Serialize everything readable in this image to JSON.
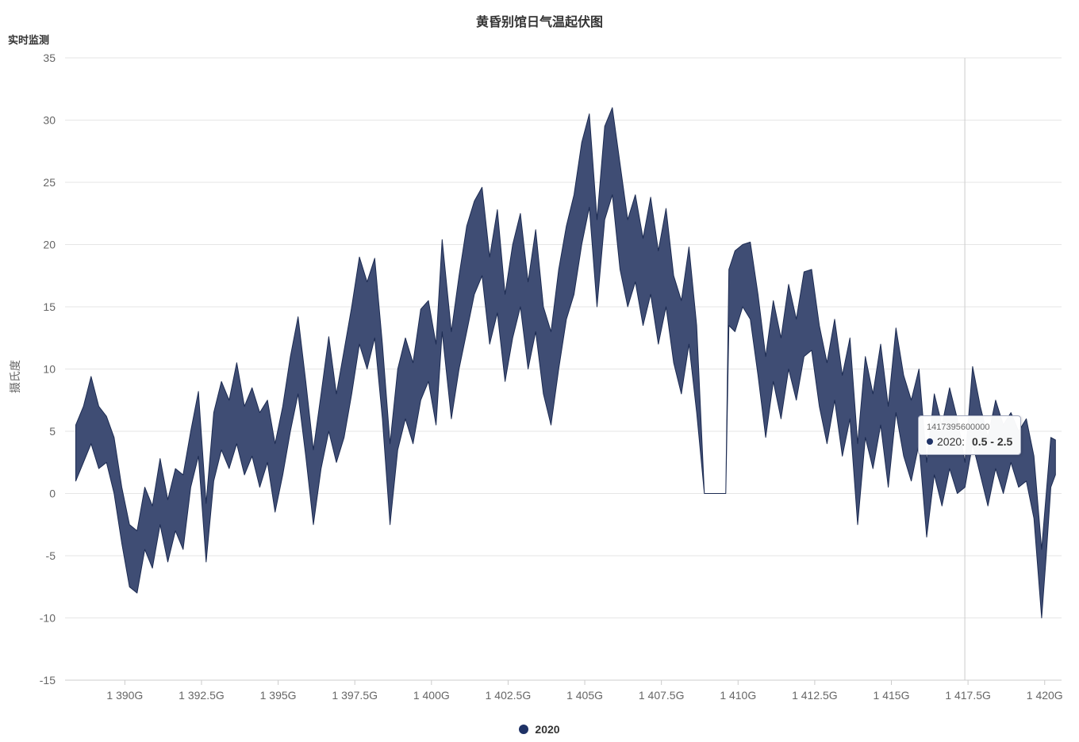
{
  "title": "黄昏别馆日气温起伏图",
  "y_axis_top_label": "实时监测",
  "y_axis_title": "摄氏度",
  "legend": {
    "label": "2020",
    "color": "#1f3266"
  },
  "tooltip": {
    "timestamp": "1417395600000",
    "series": "2020",
    "value": "0.5 - 2.5",
    "x_g": 1417.3956,
    "dot_color": "#1f3266"
  },
  "chart_data": {
    "type": "arearange",
    "title": "黄昏别馆日气温起伏图",
    "ylabel": "摄氏度",
    "series_name": "2020",
    "fill_color": "#3f4d74",
    "line_color": "#1c2b52",
    "grid_color": "#e6e6e6",
    "axis_color": "#cccccc",
    "tick_label_color": "#666666",
    "x_range": [
      1388.05,
      1420.55
    ],
    "y_range": [
      -15,
      35
    ],
    "x_tick_values": [
      1390,
      1392.5,
      1395,
      1397.5,
      1400,
      1402.5,
      1405,
      1407.5,
      1410,
      1412.5,
      1415,
      1417.5,
      1420
    ],
    "x_tick_labels": [
      "1 390G",
      "1 392.5G",
      "1 395G",
      "1 397.5G",
      "1 400G",
      "1 402.5G",
      "1 405G",
      "1 407.5G",
      "1 410G",
      "1 412.5G",
      "1 415G",
      "1 417.5G",
      "1 420G"
    ],
    "y_tick_values": [
      35,
      30,
      25,
      20,
      15,
      10,
      5,
      0,
      -5,
      -10,
      -15
    ],
    "points": [
      [
        1388.4,
        1,
        5.5
      ],
      [
        1388.65,
        2.5,
        7
      ],
      [
        1388.9,
        4,
        9.4
      ],
      [
        1389.15,
        2,
        7
      ],
      [
        1389.4,
        2.5,
        6.2
      ],
      [
        1389.65,
        0,
        4.5
      ],
      [
        1389.9,
        -4,
        0.5
      ],
      [
        1390.15,
        -7.5,
        -2.5
      ],
      [
        1390.4,
        -8,
        -3
      ],
      [
        1390.65,
        -4.5,
        0.5
      ],
      [
        1390.9,
        -6,
        -1
      ],
      [
        1391.15,
        -2.5,
        2.8
      ],
      [
        1391.4,
        -5.5,
        -0.5
      ],
      [
        1391.65,
        -3,
        2
      ],
      [
        1391.9,
        -4.5,
        1.5
      ],
      [
        1392.15,
        0.5,
        5
      ],
      [
        1392.4,
        3,
        8.2
      ],
      [
        1392.65,
        -5.5,
        -0.8
      ],
      [
        1392.9,
        1,
        6.5
      ],
      [
        1393.15,
        3.5,
        9
      ],
      [
        1393.4,
        2,
        7.5
      ],
      [
        1393.65,
        4,
        10.5
      ],
      [
        1393.9,
        1.5,
        7
      ],
      [
        1394.15,
        3,
        8.5
      ],
      [
        1394.4,
        0.5,
        6.5
      ],
      [
        1394.65,
        2.5,
        7.5
      ],
      [
        1394.9,
        -1.5,
        4
      ],
      [
        1395.15,
        1.5,
        7
      ],
      [
        1395.4,
        5,
        11
      ],
      [
        1395.65,
        8,
        14.2
      ],
      [
        1395.9,
        3,
        9
      ],
      [
        1396.15,
        -2.5,
        3.5
      ],
      [
        1396.4,
        2,
        8
      ],
      [
        1396.65,
        5,
        12.6
      ],
      [
        1396.9,
        2.5,
        8
      ],
      [
        1397.15,
        4.5,
        11.5
      ],
      [
        1397.4,
        8,
        15
      ],
      [
        1397.65,
        12,
        19
      ],
      [
        1397.9,
        10,
        17
      ],
      [
        1398.15,
        12.5,
        18.9
      ],
      [
        1398.4,
        6,
        12
      ],
      [
        1398.65,
        -2.5,
        4
      ],
      [
        1398.9,
        3.5,
        10
      ],
      [
        1399.15,
        6,
        12.5
      ],
      [
        1399.4,
        4,
        10.5
      ],
      [
        1399.65,
        7.5,
        14.8
      ],
      [
        1399.9,
        9,
        15.5
      ],
      [
        1400.15,
        5.5,
        12
      ],
      [
        1400.35,
        13,
        20.4
      ],
      [
        1400.65,
        6,
        13
      ],
      [
        1400.9,
        10,
        17.5
      ],
      [
        1401.15,
        13,
        21.5
      ],
      [
        1401.4,
        16,
        23.5
      ],
      [
        1401.65,
        17.5,
        24.6
      ],
      [
        1401.9,
        12,
        19
      ],
      [
        1402.15,
        14.5,
        22.8
      ],
      [
        1402.4,
        9,
        16
      ],
      [
        1402.65,
        12.5,
        20
      ],
      [
        1402.9,
        15,
        22.5
      ],
      [
        1403.15,
        10,
        17
      ],
      [
        1403.4,
        13,
        21.2
      ],
      [
        1403.65,
        8,
        15
      ],
      [
        1403.9,
        5.5,
        13
      ],
      [
        1404.15,
        10,
        18
      ],
      [
        1404.4,
        14,
        21.5
      ],
      [
        1404.65,
        16,
        24
      ],
      [
        1404.9,
        20,
        28.2
      ],
      [
        1405.15,
        23,
        30.5
      ],
      [
        1405.4,
        15,
        22
      ],
      [
        1405.65,
        22,
        29.5
      ],
      [
        1405.9,
        24,
        31
      ],
      [
        1406.15,
        18,
        26.5
      ],
      [
        1406.4,
        15,
        22
      ],
      [
        1406.65,
        17,
        24
      ],
      [
        1406.9,
        13.5,
        20.5
      ],
      [
        1407.15,
        16,
        23.8
      ],
      [
        1407.4,
        12,
        19.5
      ],
      [
        1407.65,
        15,
        22.9
      ],
      [
        1407.9,
        10.5,
        17.5
      ],
      [
        1408.15,
        8,
        15.5
      ],
      [
        1408.4,
        12,
        19.8
      ],
      [
        1408.65,
        6.5,
        13.5
      ],
      [
        1408.9,
        0,
        0
      ],
      [
        1409.15,
        0,
        0
      ],
      [
        1409.4,
        0,
        0
      ],
      [
        1409.6,
        0,
        0
      ],
      [
        1409.7,
        13.5,
        18
      ],
      [
        1409.9,
        13,
        19.5
      ],
      [
        1410.15,
        15,
        20
      ],
      [
        1410.4,
        14,
        20.2
      ],
      [
        1410.65,
        9.5,
        16
      ],
      [
        1410.9,
        4.5,
        11
      ],
      [
        1411.15,
        9,
        15.5
      ],
      [
        1411.4,
        6,
        12.5
      ],
      [
        1411.65,
        10,
        16.8
      ],
      [
        1411.9,
        7.5,
        14
      ],
      [
        1412.15,
        11,
        17.8
      ],
      [
        1412.4,
        11.5,
        18
      ],
      [
        1412.65,
        7,
        13.5
      ],
      [
        1412.9,
        4,
        10.5
      ],
      [
        1413.15,
        7.5,
        14
      ],
      [
        1413.4,
        3,
        9.5
      ],
      [
        1413.65,
        6,
        12.5
      ],
      [
        1413.9,
        -2.5,
        4
      ],
      [
        1414.15,
        4.5,
        11
      ],
      [
        1414.4,
        2,
        8
      ],
      [
        1414.65,
        5.5,
        12
      ],
      [
        1414.9,
        0.5,
        7
      ],
      [
        1415.15,
        6.5,
        13.3
      ],
      [
        1415.4,
        3,
        9.5
      ],
      [
        1415.65,
        1,
        7.5
      ],
      [
        1415.9,
        4,
        10
      ],
      [
        1416.15,
        -3.5,
        2.5
      ],
      [
        1416.4,
        1.5,
        8
      ],
      [
        1416.65,
        -1,
        5.5
      ],
      [
        1416.9,
        2,
        8.5
      ],
      [
        1417.15,
        0,
        6
      ],
      [
        1417.4,
        0.5,
        2.5
      ],
      [
        1417.65,
        4,
        10.2
      ],
      [
        1417.9,
        1.5,
        7
      ],
      [
        1418.15,
        -1,
        4.5
      ],
      [
        1418.4,
        2,
        7.5
      ],
      [
        1418.65,
        0,
        5.5
      ],
      [
        1418.9,
        2.5,
        6.5
      ],
      [
        1419.15,
        0.5,
        5
      ],
      [
        1419.4,
        1,
        6
      ],
      [
        1419.65,
        -2,
        3
      ],
      [
        1419.9,
        -10,
        -4.5
      ],
      [
        1420.05,
        -5,
        0
      ],
      [
        1420.2,
        0.5,
        4.5
      ],
      [
        1420.35,
        1.5,
        4.3
      ]
    ]
  }
}
